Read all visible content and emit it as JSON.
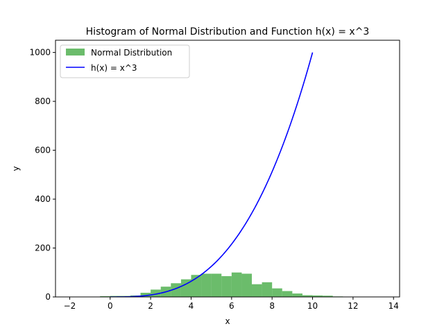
{
  "chart_data": {
    "type": "bar",
    "title": "Histogram of Normal Distribution and Function h(x) = x^3",
    "xlabel": "x",
    "ylabel": "y",
    "xlim": [
      -2.7,
      14.3
    ],
    "ylim": [
      0,
      1050
    ],
    "xticks": [
      -2,
      0,
      2,
      4,
      6,
      8,
      10,
      12,
      14
    ],
    "yticks": [
      0,
      200,
      400,
      600,
      800,
      1000
    ],
    "legend_position": "upper-left",
    "grid": false,
    "histogram": {
      "name": "Normal Distribution",
      "color": "#2ca02c",
      "opacity": 0.7,
      "bin_edges": [
        -2.0,
        -1.5,
        -1.0,
        -0.5,
        0.0,
        0.5,
        1.0,
        1.5,
        2.0,
        2.5,
        3.0,
        3.5,
        4.0,
        4.5,
        5.0,
        5.5,
        6.0,
        6.5,
        7.0,
        7.5,
        8.0,
        8.5,
        9.0,
        9.5,
        10.0,
        10.5,
        11.0,
        11.5,
        12.0,
        12.5,
        13.0,
        13.5
      ],
      "counts": [
        1,
        1,
        1,
        3,
        4,
        4,
        6,
        17,
        30,
        42,
        56,
        72,
        90,
        95,
        95,
        85,
        100,
        95,
        52,
        60,
        35,
        24,
        14,
        7,
        6,
        5,
        2,
        1,
        1,
        1,
        1
      ]
    },
    "line": {
      "name": "h(x) = x^3",
      "color": "#0000ff",
      "x_start": 0,
      "x_end": 10,
      "formula": "x^3"
    }
  }
}
